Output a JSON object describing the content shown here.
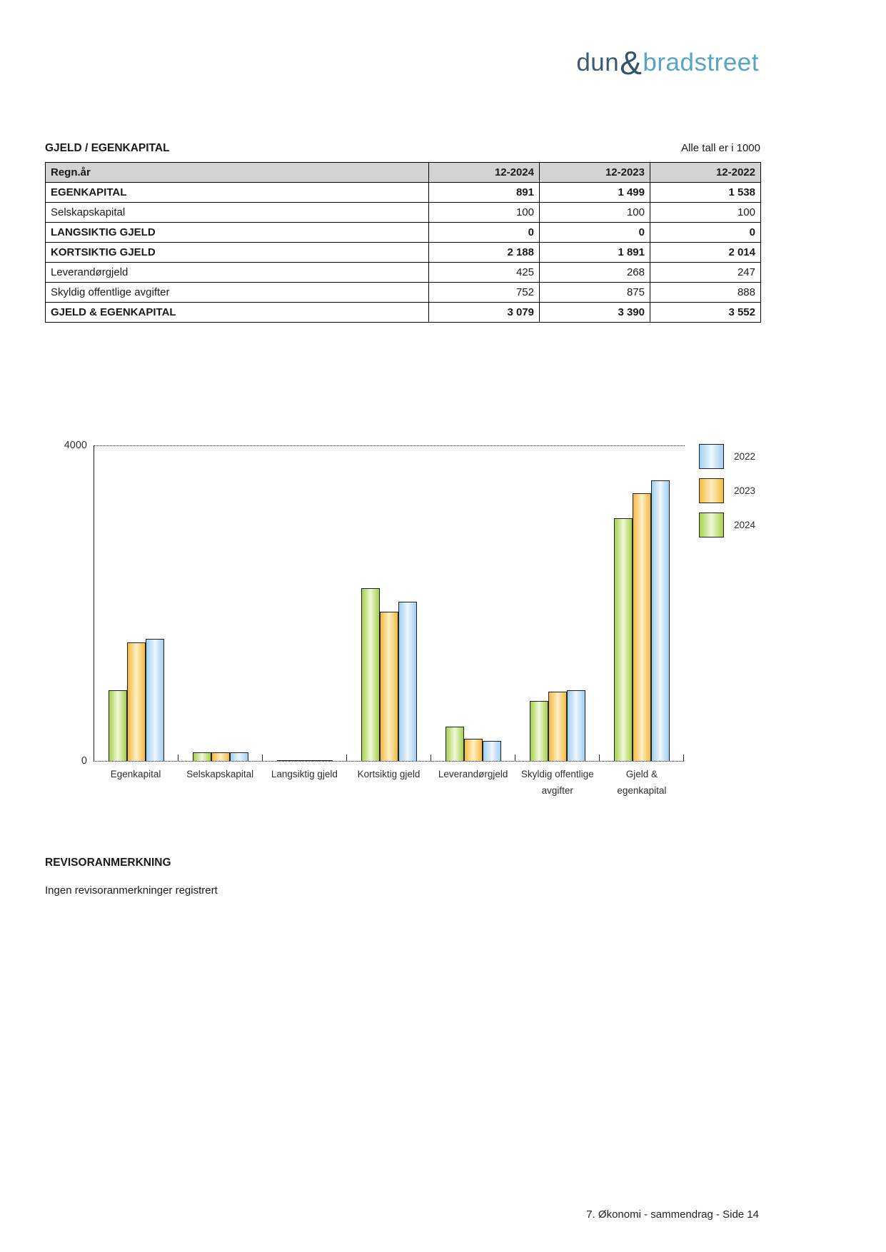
{
  "logo": {
    "part1": "dun",
    "amp": "&",
    "part2": "bradstreet",
    "color_dark": "#3D5A70",
    "color_light": "#58A4C3"
  },
  "table_section": {
    "title": "GJELD / EGENKAPITAL",
    "note": "Alle tall er i 1000",
    "columns": [
      "Regn.år",
      "12-2024",
      "12-2023",
      "12-2022"
    ],
    "rows": [
      {
        "label": "EGENKAPITAL",
        "bold": true,
        "values": [
          "891",
          "1 499",
          "1 538"
        ]
      },
      {
        "label": "Selskapskapital",
        "bold": false,
        "values": [
          "100",
          "100",
          "100"
        ]
      },
      {
        "label": "LANGSIKTIG GJELD",
        "bold": true,
        "values": [
          "0",
          "0",
          "0"
        ]
      },
      {
        "label": "KORTSIKTIG GJELD",
        "bold": true,
        "values": [
          "2 188",
          "1 891",
          "2 014"
        ]
      },
      {
        "label": "Leverandørgjeld",
        "bold": false,
        "values": [
          "425",
          "268",
          "247"
        ]
      },
      {
        "label": "Skyldig offentlige avgifter",
        "bold": false,
        "values": [
          "752",
          "875",
          "888"
        ]
      },
      {
        "label": "GJELD & EGENKAPITAL",
        "bold": true,
        "values": [
          "3 079",
          "3 390",
          "3 552"
        ]
      }
    ]
  },
  "chart_data": {
    "type": "bar",
    "title": "",
    "categories": [
      "Egenkapital",
      "Selskapskapital",
      "Langsiktig gjeld",
      "Kortsiktig gjeld",
      "Leverandørgjeld",
      "Skyldig offentlige avgifter",
      "Gjeld & egenkapital"
    ],
    "category_display": [
      [
        "Egenkapital"
      ],
      [
        "Selskapskapital"
      ],
      [
        "Langsiktig gjeld"
      ],
      [
        "Kortsiktig gjeld"
      ],
      [
        "Leverandørgjeld"
      ],
      [
        "Skyldig offentlige",
        "avgifter"
      ],
      [
        "Gjeld &",
        "egenkapital"
      ]
    ],
    "series": [
      {
        "name": "2024",
        "values": [
          891,
          100,
          0,
          2188,
          425,
          752,
          3079
        ],
        "edge_color": "#A6D148",
        "center_color": "#EFF7D9"
      },
      {
        "name": "2023",
        "values": [
          1499,
          100,
          0,
          1891,
          268,
          875,
          3390
        ],
        "edge_color": "#F6B93C",
        "center_color": "#FDEEC6"
      },
      {
        "name": "2022",
        "values": [
          1538,
          100,
          0,
          2014,
          247,
          888,
          3552
        ],
        "edge_color": "#9DCFF2",
        "center_color": "#EFF7FD"
      }
    ],
    "legend": [
      {
        "label": "2022"
      },
      {
        "label": "2023"
      },
      {
        "label": "2024"
      }
    ],
    "ylim": [
      0,
      4000
    ],
    "ytick_labels": [
      "4000",
      "0"
    ],
    "grid": "single dotted gridline at y=4000, dotted baseline at y=0",
    "legend_position": "top-right"
  },
  "revisor": {
    "title": "REVISORANMERKNING",
    "body": "Ingen revisoranmerkninger registrert"
  },
  "footer": {
    "text": "7. Økonomi - sammendrag - Side 14"
  }
}
